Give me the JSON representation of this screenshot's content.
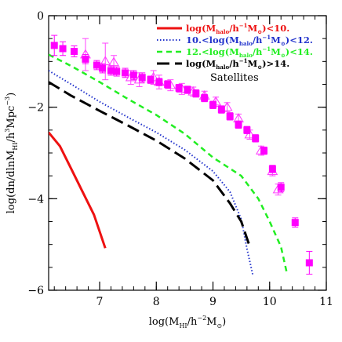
{
  "chart_data": {
    "type": "line",
    "xaxis": {
      "label_main": "log(M",
      "label_sub": "HI",
      "label_rest": "/h",
      "label_sup": "−2",
      "label_tail": "M",
      "label_sun": "⊙",
      "label_close": ")",
      "lim": [
        6.1,
        11.0
      ],
      "ticks": [
        {
          "value": 7,
          "label": "7"
        },
        {
          "value": 8,
          "label": "8"
        },
        {
          "value": 9,
          "label": "9"
        },
        {
          "value": 10,
          "label": "10"
        },
        {
          "value": 11,
          "label": "11"
        }
      ],
      "minor_step": 0.2
    },
    "yaxis": {
      "label_main": "log(dn/dlnM",
      "label_sub": "HI",
      "label_rest": "/h",
      "label_sup": "3",
      "label_tail": "Mpc",
      "label_sup2": "−3",
      "label_close": ")",
      "lim": [
        -6.0,
        0.0
      ],
      "ticks": [
        {
          "value": 0,
          "label": "0"
        },
        {
          "value": -2,
          "label": "−2"
        },
        {
          "value": -4,
          "label": "−4"
        },
        {
          "value": -6,
          "label": "−6"
        }
      ],
      "minor_step": 0.5
    },
    "series": [
      {
        "key": "lt10",
        "color": "#ee1111",
        "dash": "solid",
        "width": 3,
        "legend": {
          "pre": "log(M",
          "sub": "halo",
          "mid": "/h",
          "sup": "−1",
          "tail": "M",
          "sun": "⊙",
          "post": ")<10."
        },
        "x": [
          6.1,
          6.3,
          6.5,
          6.7,
          6.9,
          7.1
        ],
        "y": [
          -2.55,
          -2.85,
          -3.35,
          -3.85,
          -4.35,
          -5.08
        ]
      },
      {
        "key": "10to12",
        "color": "#2233cc",
        "dash": "dotted",
        "width": 2,
        "legend": {
          "pre": "10.<log(M",
          "sub": "halo",
          "mid": "/h",
          "sup": "−1",
          "tail": "M",
          "sun": "⊙",
          "post": ")<12."
        },
        "x": [
          6.1,
          6.5,
          7.0,
          7.5,
          8.0,
          8.5,
          9.0,
          9.3,
          9.5,
          9.6,
          9.7
        ],
        "y": [
          -1.2,
          -1.5,
          -1.88,
          -2.22,
          -2.55,
          -2.93,
          -3.4,
          -3.85,
          -4.45,
          -5.1,
          -5.65
        ]
      },
      {
        "key": "12to14",
        "color": "#22ee22",
        "dash": "dashed-short",
        "width": 2.5,
        "legend": {
          "pre": "12.<log(M",
          "sub": "halo",
          "mid": "/h",
          "sup": "−1",
          "tail": "M",
          "sun": "⊙",
          "post": ")<14."
        },
        "x": [
          6.1,
          6.5,
          7.0,
          7.5,
          8.0,
          8.5,
          9.0,
          9.5,
          9.8,
          10.0,
          10.2,
          10.3
        ],
        "y": [
          -0.85,
          -1.1,
          -1.45,
          -1.82,
          -2.17,
          -2.58,
          -3.1,
          -3.5,
          -4.0,
          -4.5,
          -5.05,
          -5.6
        ]
      },
      {
        "key": "gt14",
        "color": "#000000",
        "dash": "dashed-long",
        "width": 3,
        "legend": {
          "pre": "log(M",
          "sub": "halo",
          "mid": "/h",
          "sup": "−1",
          "tail": "M",
          "sun": "⊙",
          "post": ")>14."
        },
        "x": [
          6.1,
          6.5,
          7.0,
          7.5,
          8.0,
          8.5,
          9.0,
          9.3,
          9.5,
          9.65
        ],
        "y": [
          -1.45,
          -1.75,
          -2.08,
          -2.4,
          -2.73,
          -3.12,
          -3.6,
          -4.1,
          -4.5,
          -5.05
        ]
      }
    ],
    "satellites_label": "Satellites",
    "points_filled": {
      "color": "#ff00ff",
      "x": [
        6.2,
        6.35,
        6.55,
        6.75,
        6.95,
        7.05,
        7.2,
        7.3,
        7.45,
        7.6,
        7.75,
        7.9,
        8.05,
        8.2,
        8.4,
        8.55,
        8.7,
        8.85,
        9.0,
        9.15,
        9.3,
        9.45,
        9.6,
        9.75,
        9.9,
        10.05,
        10.2,
        10.45,
        10.7
      ],
      "y": [
        -0.65,
        -0.72,
        -0.78,
        -0.95,
        -1.08,
        -1.15,
        -1.2,
        -1.22,
        -1.25,
        -1.3,
        -1.35,
        -1.4,
        -1.45,
        -1.5,
        -1.58,
        -1.62,
        -1.7,
        -1.8,
        -1.95,
        -2.05,
        -2.2,
        -2.38,
        -2.5,
        -2.68,
        -2.95,
        -3.35,
        -3.75,
        -4.52,
        -5.4
      ],
      "err": [
        0.22,
        0.15,
        0.12,
        0.1,
        0.1,
        0.1,
        0.1,
        0.1,
        0.1,
        0.1,
        0.1,
        0.08,
        0.08,
        0.08,
        0.08,
        0.08,
        0.08,
        0.08,
        0.08,
        0.08,
        0.08,
        0.08,
        0.08,
        0.08,
        0.08,
        0.08,
        0.1,
        0.1,
        0.25
      ]
    },
    "points_open": {
      "color": "#ff44ff",
      "x": [
        6.75,
        7.1,
        7.25,
        7.55,
        7.7,
        7.95,
        8.05,
        8.25,
        8.45,
        8.65,
        8.85,
        9.05,
        9.25,
        9.45,
        9.65,
        9.85,
        10.05,
        10.15
      ],
      "y": [
        -0.85,
        -1.0,
        -1.02,
        -1.35,
        -1.4,
        -1.35,
        -1.45,
        -1.52,
        -1.6,
        -1.66,
        -1.75,
        -1.88,
        -2.0,
        -2.25,
        -2.6,
        -2.95,
        -3.4,
        -3.8
      ],
      "err": [
        0.35,
        0.4,
        0.15,
        0.15,
        0.15,
        0.15,
        0.15,
        0.12,
        0.12,
        0.1,
        0.1,
        0.1,
        0.1,
        0.1,
        0.1,
        0.1,
        0.1,
        0.12
      ]
    }
  }
}
